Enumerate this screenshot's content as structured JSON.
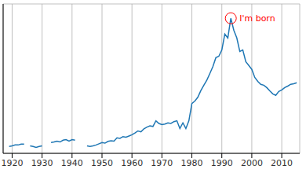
{
  "chart_data": {
    "type": "line",
    "color": "#1f77b4",
    "grid": true,
    "tick_labels": "x",
    "xlim": [
      1917,
      2016
    ],
    "xticks": [
      1920,
      1930,
      1940,
      1950,
      1960,
      1970,
      1980,
      1990,
      2000,
      2010
    ],
    "ylim": [
      0.3,
      5.3
    ],
    "yticks": [
      1,
      2,
      3,
      4,
      5
    ],
    "x": [
      1919,
      1920,
      1921,
      1922,
      1923,
      1924,
      1925,
      1926,
      1927,
      1928,
      1929,
      1930,
      1931,
      1932,
      1933,
      1934,
      1935,
      1936,
      1937,
      1938,
      1939,
      1940,
      1941,
      1942,
      1943,
      1944,
      1945,
      1946,
      1947,
      1948,
      1949,
      1950,
      1951,
      1952,
      1953,
      1954,
      1955,
      1956,
      1957,
      1958,
      1959,
      1960,
      1961,
      1962,
      1963,
      1964,
      1965,
      1966,
      1967,
      1968,
      1969,
      1970,
      1971,
      1972,
      1973,
      1974,
      1975,
      1976,
      1977,
      1978,
      1979,
      1980,
      1981,
      1982,
      1983,
      1984,
      1985,
      1986,
      1987,
      1988,
      1989,
      1990,
      1991,
      1992,
      1993,
      1994,
      1995,
      1996,
      1997,
      1998,
      1999,
      2000,
      2001,
      2002,
      2003,
      2004,
      2005,
      2006,
      2007,
      2008,
      2009,
      2010,
      2011,
      2012,
      2013,
      2014,
      2015
    ],
    "values": [
      0.53,
      0.55,
      0.58,
      0.58,
      0.61,
      0.61,
      null,
      0.55,
      0.53,
      0.5,
      0.53,
      0.55,
      null,
      null,
      0.66,
      0.68,
      0.71,
      0.68,
      0.74,
      0.76,
      0.71,
      0.76,
      0.74,
      null,
      null,
      null,
      0.55,
      0.53,
      0.55,
      0.58,
      0.62,
      0.66,
      0.64,
      0.7,
      0.72,
      0.71,
      0.82,
      0.8,
      0.86,
      0.84,
      0.88,
      0.92,
      0.98,
      1.05,
      1.02,
      1.12,
      1.18,
      1.22,
      1.2,
      1.39,
      1.3,
      1.26,
      1.28,
      1.32,
      1.3,
      1.36,
      1.39,
      1.13,
      1.32,
      1.13,
      1.39,
      1.97,
      2.05,
      2.18,
      2.4,
      2.58,
      2.75,
      2.97,
      3.2,
      3.5,
      3.55,
      3.76,
      4.29,
      4.16,
      4.82,
      4.42,
      4.16,
      3.71,
      3.76,
      3.37,
      3.24,
      3.11,
      2.84,
      2.71,
      2.61,
      2.58,
      2.5,
      2.39,
      2.29,
      2.24,
      2.37,
      2.42,
      2.5,
      2.55,
      2.61,
      2.63,
      2.66
    ],
    "annotation": {
      "text": "I'm born",
      "x": 1993,
      "y": 4.82
    }
  }
}
